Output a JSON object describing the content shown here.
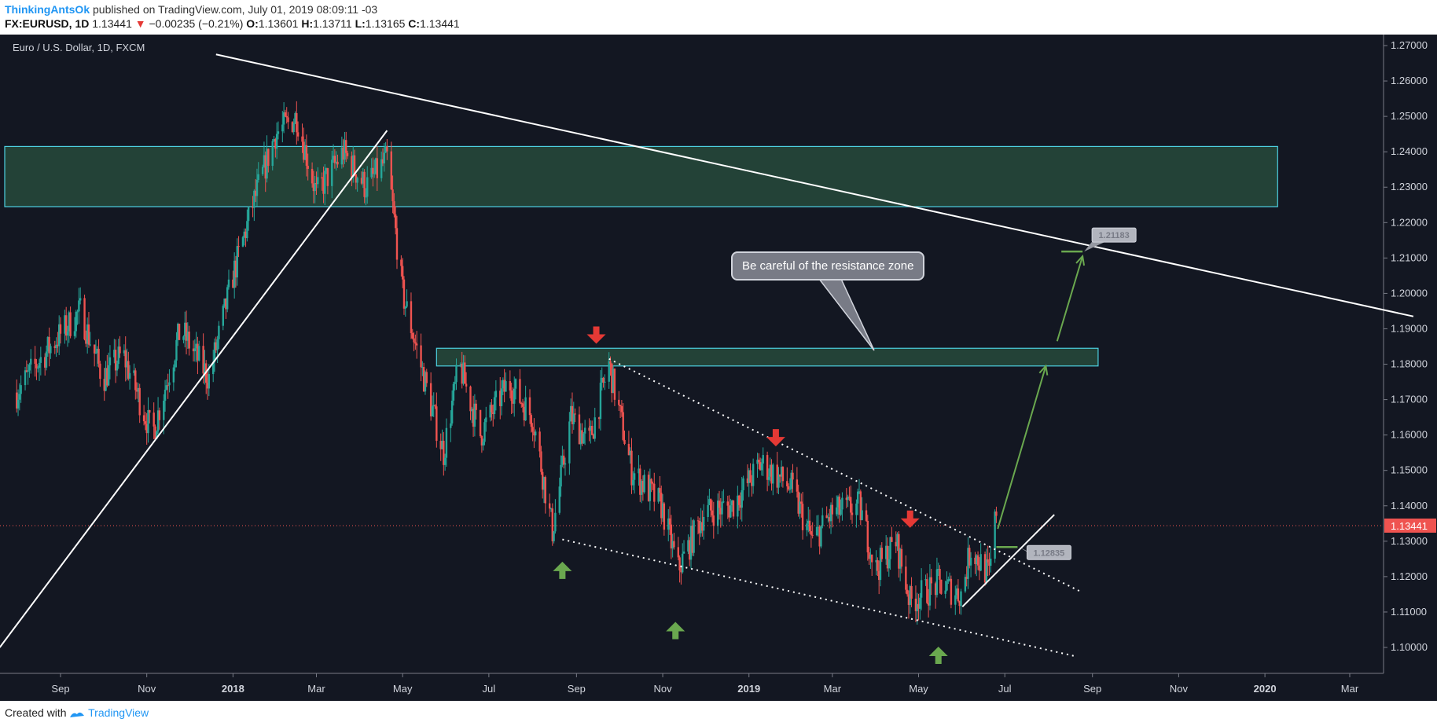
{
  "header": {
    "author": "ThinkingAntsOk",
    "published_text": " published on TradingView.com, July 01, 2019 08:09:11 -03",
    "symbol": "FX:EURUSD, 1D",
    "last": "1.13441",
    "change": "−0.00235 (−0.21%)",
    "o_label": "O:",
    "o_value": "1.13601",
    "h_label": "H:",
    "h_value": "1.13711",
    "l_label": "L:",
    "l_value": "1.13165",
    "c_label": "C:",
    "c_value": "1.13441"
  },
  "footer": {
    "created_with": "Created with",
    "brand": "TradingView"
  },
  "colors": {
    "background": "#131722",
    "up": "#26a69a",
    "down": "#ef5350",
    "zone": "#234237",
    "zone_border": "#4dd0e1",
    "green_arrow": "#6aa84f",
    "red_arrow": "#e53935"
  },
  "chart_data": {
    "type": "candlestick",
    "title": "Euro / U.S. Dollar, 1D, FXCM",
    "y_ticks": [
      "1.27000",
      "1.26000",
      "1.25000",
      "1.24000",
      "1.23000",
      "1.22000",
      "1.21000",
      "1.20000",
      "1.19000",
      "1.18000",
      "1.17000",
      "1.16000",
      "1.15000",
      "1.14000",
      "1.13000",
      "1.12000",
      "1.11000",
      "1.10000"
    ],
    "ylim": [
      1.095,
      1.272
    ],
    "x_ticks": [
      {
        "label": "Sep",
        "bold": false
      },
      {
        "label": "Nov",
        "bold": false
      },
      {
        "label": "2018",
        "bold": true
      },
      {
        "label": "Mar",
        "bold": false
      },
      {
        "label": "May",
        "bold": false
      },
      {
        "label": "Jul",
        "bold": false
      },
      {
        "label": "Sep",
        "bold": false
      },
      {
        "label": "Nov",
        "bold": false
      },
      {
        "label": "2019",
        "bold": true
      },
      {
        "label": "Mar",
        "bold": false
      },
      {
        "label": "May",
        "bold": false
      },
      {
        "label": "Jul",
        "bold": false
      },
      {
        "label": "Sep",
        "bold": false
      },
      {
        "label": "Nov",
        "bold": false
      },
      {
        "label": "2020",
        "bold": true
      },
      {
        "label": "Mar",
        "bold": false
      }
    ],
    "price_path": [
      [
        "2017-08-01",
        1.172
      ],
      [
        "2017-08-15",
        1.18
      ],
      [
        "2017-08-31",
        1.188
      ],
      [
        "2017-09-15",
        1.195
      ],
      [
        "2017-10-01",
        1.176
      ],
      [
        "2017-10-15",
        1.183
      ],
      [
        "2017-11-05",
        1.16
      ],
      [
        "2017-11-25",
        1.19
      ],
      [
        "2017-12-15",
        1.176
      ],
      [
        "2018-01-01",
        1.205
      ],
      [
        "2018-01-15",
        1.225
      ],
      [
        "2018-01-31",
        1.245
      ],
      [
        "2018-02-15",
        1.25
      ],
      [
        "2018-03-01",
        1.228
      ],
      [
        "2018-03-20",
        1.24
      ],
      [
        "2018-04-05",
        1.23
      ],
      [
        "2018-04-20",
        1.238
      ],
      [
        "2018-05-01",
        1.2
      ],
      [
        "2018-05-20",
        1.17
      ],
      [
        "2018-05-30",
        1.155
      ],
      [
        "2018-06-10",
        1.18
      ],
      [
        "2018-06-25",
        1.16
      ],
      [
        "2018-07-15",
        1.175
      ],
      [
        "2018-08-01",
        1.165
      ],
      [
        "2018-08-15",
        1.133
      ],
      [
        "2018-08-28",
        1.165
      ],
      [
        "2018-09-10",
        1.158
      ],
      [
        "2018-09-24",
        1.18
      ],
      [
        "2018-10-10",
        1.15
      ],
      [
        "2018-10-31",
        1.14
      ],
      [
        "2018-11-12",
        1.122
      ],
      [
        "2018-11-30",
        1.138
      ],
      [
        "2018-12-20",
        1.14
      ],
      [
        "2019-01-10",
        1.152
      ],
      [
        "2019-01-31",
        1.145
      ],
      [
        "2019-02-15",
        1.13
      ],
      [
        "2019-03-01",
        1.138
      ],
      [
        "2019-03-20",
        1.14
      ],
      [
        "2019-04-01",
        1.122
      ],
      [
        "2019-04-15",
        1.13
      ],
      [
        "2019-04-25",
        1.113
      ],
      [
        "2019-05-15",
        1.118
      ],
      [
        "2019-05-31",
        1.115
      ],
      [
        "2019-06-07",
        1.128
      ],
      [
        "2019-06-20",
        1.12
      ],
      [
        "2019-06-25",
        1.139
      ],
      [
        "2019-07-01",
        1.134
      ]
    ],
    "last_price": "1.13441",
    "zones": [
      {
        "from": "2017-07-15",
        "to": "2020-01-10",
        "low": 1.2245,
        "high": 1.2415
      },
      {
        "from": "2018-05-25",
        "to": "2019-09-05",
        "low": 1.1795,
        "high": 1.1845
      }
    ],
    "lines": [
      {
        "style": "solid",
        "points": [
          [
            "2017-07-20",
            1.1
          ],
          [
            "2018-04-20",
            1.246
          ]
        ]
      },
      {
        "style": "solid",
        "points": [
          [
            "2017-12-20",
            1.2675
          ],
          [
            "2020-04-15",
            1.1935
          ]
        ]
      },
      {
        "style": "dotted",
        "points": [
          [
            "2018-09-24",
            1.1815
          ],
          [
            "2019-08-25",
            1.1155
          ]
        ]
      },
      {
        "style": "dotted",
        "points": [
          [
            "2018-08-22",
            1.1305
          ],
          [
            "2019-08-20",
            1.0975
          ]
        ]
      },
      {
        "style": "solid",
        "points": [
          [
            "2019-06-01",
            1.1115
          ],
          [
            "2019-08-05",
            1.1375
          ]
        ]
      }
    ],
    "projection": [
      [
        "2019-06-26",
        1.1335
      ],
      [
        "2019-07-30",
        1.1795
      ]
    ],
    "projection_target": [
      [
        "2019-08-07",
        1.1865
      ],
      [
        "2019-08-25",
        1.2105
      ]
    ],
    "target_marks": [
      {
        "date_from": "2019-08-10",
        "date_to": "2019-08-25",
        "price": 1.21183,
        "label": "1.21183"
      },
      {
        "date_from": "2019-06-25",
        "date_to": "2019-07-10",
        "price": 1.12835,
        "label": "1.12835"
      }
    ],
    "red_arrows": [
      [
        "2018-09-15",
        1.188
      ],
      [
        "2019-01-20",
        1.159
      ],
      [
        "2019-04-25",
        1.136
      ]
    ],
    "green_arrows": [
      [
        "2018-08-22",
        1.122
      ],
      [
        "2018-11-10",
        1.105
      ],
      [
        "2019-05-15",
        1.098
      ]
    ],
    "annotation": "Be careful of the resistance zone"
  }
}
